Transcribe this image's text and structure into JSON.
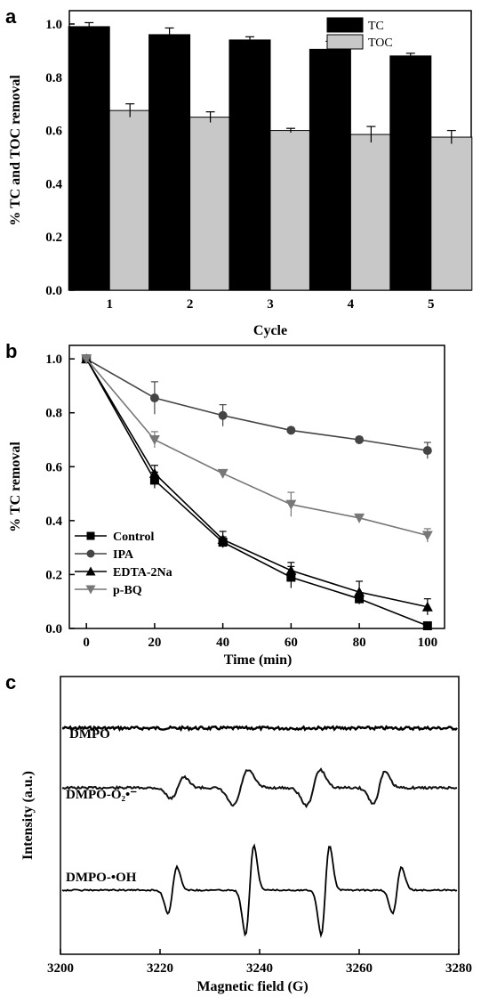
{
  "panels": {
    "a": "a",
    "b": "b",
    "c": "c"
  },
  "chart_data": [
    {
      "type": "bar",
      "xlabel": "Cycle",
      "ylabel": "% TC and TOC removal",
      "categories": [
        "1",
        "2",
        "3",
        "4",
        "5"
      ],
      "ylim": [
        0,
        1.05
      ],
      "yticks": [
        "0.0",
        "0.2",
        "0.4",
        "0.6",
        "0.8",
        "1.0"
      ],
      "legend_position": "top-right",
      "series": [
        {
          "name": "TC",
          "color": "#000000",
          "values": [
            0.99,
            0.96,
            0.94,
            0.905,
            0.88
          ],
          "errors": [
            0.015,
            0.025,
            0.012,
            0.03,
            0.01
          ]
        },
        {
          "name": "TOC",
          "color": "#c8c8c8",
          "values": [
            0.675,
            0.65,
            0.6,
            0.585,
            0.575
          ],
          "errors": [
            0.025,
            0.02,
            0.008,
            0.03,
            0.025
          ]
        }
      ]
    },
    {
      "type": "line",
      "xlabel": "Time (min)",
      "ylabel": "% TC removal",
      "x": [
        0,
        20,
        40,
        60,
        80,
        100
      ],
      "xticks": [
        "0",
        "20",
        "40",
        "60",
        "80",
        "100"
      ],
      "xlim": [
        -5,
        105
      ],
      "ylim": [
        0,
        1.05
      ],
      "yticks": [
        "0.0",
        "0.2",
        "0.4",
        "0.6",
        "0.8",
        "1.0"
      ],
      "legend_position": "bottom-left",
      "series": [
        {
          "name": "Control",
          "marker": "square",
          "color": "#000000",
          "values": [
            1.0,
            0.55,
            0.32,
            0.19,
            0.11,
            0.01
          ],
          "errors": [
            0.01,
            0.03,
            0.02,
            0.04,
            0.02,
            0.01
          ]
        },
        {
          "name": "IPA",
          "marker": "circle",
          "color": "#444444",
          "values": [
            1.0,
            0.855,
            0.79,
            0.735,
            0.7,
            0.66
          ],
          "errors": [
            0.01,
            0.06,
            0.04,
            0.01,
            0.01,
            0.03
          ]
        },
        {
          "name": "EDTA-2Na",
          "marker": "triangle-up",
          "color": "#000000",
          "values": [
            1.0,
            0.575,
            0.33,
            0.215,
            0.135,
            0.08
          ],
          "errors": [
            0.01,
            0.03,
            0.03,
            0.03,
            0.04,
            0.03
          ]
        },
        {
          "name": "p-BQ",
          "marker": "triangle-down",
          "color": "#777777",
          "values": [
            1.0,
            0.7,
            0.575,
            0.46,
            0.41,
            0.345
          ],
          "errors": [
            0.01,
            0.03,
            0.01,
            0.045,
            0.01,
            0.025
          ]
        }
      ]
    },
    {
      "type": "line",
      "xlabel": "Magnetic field (G)",
      "ylabel": "Intensity (a.u.)",
      "xlim": [
        3200,
        3280
      ],
      "xticks": [
        "3200",
        "3220",
        "3240",
        "3260",
        "3280"
      ],
      "series": [
        {
          "name": "DMPO"
        },
        {
          "name": "DMPO-O₂•⁻"
        },
        {
          "name": "DMPO-•OH"
        }
      ]
    }
  ]
}
